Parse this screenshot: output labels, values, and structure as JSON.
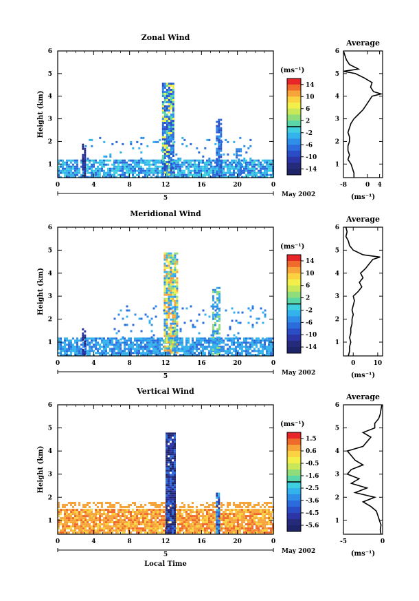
{
  "chart_data": [
    {
      "type": "heatmap",
      "title": "Zonal Wind",
      "ylabel": "Height (km)",
      "xticks": [
        "0",
        "4",
        "8",
        "12",
        "16",
        "20",
        "0"
      ],
      "yticks": [
        "1",
        "2",
        "3",
        "4",
        "5",
        "6"
      ],
      "xlim": [
        0,
        24
      ],
      "ylim": [
        0.4,
        6
      ],
      "date_marker": "5",
      "date_label": "May 2002",
      "colorbar": {
        "unit": "(ms⁻¹)",
        "ticks": [
          "14",
          "10",
          "6",
          "2",
          "-2",
          "-6",
          "-10",
          "-14"
        ],
        "range": [
          -16,
          16
        ],
        "colors": [
          "#e8262a",
          "#f06a2c",
          "#f7a43a",
          "#fbd241",
          "#f2ef4a",
          "#c8e85a",
          "#8fdc7a",
          "#5ad7a8",
          "#3fd0e0",
          "#33b2ec",
          "#2f8ee8",
          "#2c6bdc",
          "#2a4dc6",
          "#2b35a6",
          "#262a7a",
          "#1e2468"
        ]
      },
      "profile": {
        "title": "Average",
        "xlabel": "(ms⁻¹)",
        "xticks": [
          "-8",
          "0",
          "4"
        ],
        "yticks": [
          "1",
          "2",
          "3",
          "4",
          "5",
          "6"
        ],
        "xlim": [
          -8,
          5
        ],
        "heights": [
          0.4,
          0.6,
          0.8,
          1.0,
          1.2,
          1.4,
          1.6,
          1.8,
          2.0,
          2.2,
          2.4,
          2.6,
          2.8,
          3.0,
          3.2,
          3.4,
          3.6,
          3.8,
          4.0,
          4.1,
          4.2,
          4.4,
          4.6,
          4.8,
          5.0,
          5.1,
          5.2,
          5.4,
          5.6,
          5.8,
          6.0
        ],
        "values": [
          -4.5,
          -4.5,
          -5,
          -5.5,
          -6.5,
          -6,
          -6.5,
          -6.5,
          -6,
          -6,
          -6.5,
          -6,
          -5.5,
          -4.5,
          -3,
          -1.5,
          -0.5,
          0.5,
          1.5,
          4.5,
          2,
          1,
          1.5,
          -1,
          -4,
          -8,
          -3,
          -6,
          -7,
          -7.5,
          -8
        ]
      },
      "features": [
        {
          "type": "band",
          "x0": 0,
          "x1": 24,
          "hmin": 0.45,
          "hmax": 1.2,
          "values": [
            -1,
            -3,
            -6
          ],
          "density": 0.8
        },
        {
          "type": "column",
          "x0": 11.6,
          "x1": 12.9,
          "hmin": 0.5,
          "hmax": 4.6,
          "values": [
            -6,
            -8,
            2,
            8,
            -4
          ],
          "density": 0.85
        },
        {
          "type": "column",
          "x0": 17.6,
          "x1": 18.2,
          "hmin": 0.5,
          "hmax": 3.0,
          "values": [
            -5,
            -8,
            -6
          ],
          "density": 0.8
        },
        {
          "type": "column",
          "x0": 2.7,
          "x1": 3.1,
          "hmin": 0.5,
          "hmax": 1.9,
          "values": [
            -10,
            -12
          ],
          "density": 0.7
        },
        {
          "type": "column",
          "x0": 19.8,
          "x1": 20.4,
          "hmin": 0.5,
          "hmax": 1.7,
          "values": [
            -4,
            -6
          ],
          "density": 0.6
        },
        {
          "type": "scatter",
          "x0": 3,
          "x1": 22,
          "hmin": 1.1,
          "hmax": 2.2,
          "values": [
            -4,
            -6,
            -2
          ],
          "density": 0.08
        }
      ]
    },
    {
      "type": "heatmap",
      "title": "Meridional Wind",
      "ylabel": "Height (km)",
      "xticks": [
        "0",
        "4",
        "8",
        "12",
        "16",
        "20",
        "0"
      ],
      "yticks": [
        "1",
        "2",
        "3",
        "4",
        "5",
        "6"
      ],
      "xlim": [
        0,
        24
      ],
      "ylim": [
        0.4,
        6
      ],
      "date_marker": "5",
      "date_label": "May 2002",
      "colorbar": {
        "unit": "(ms⁻¹)",
        "ticks": [
          "14",
          "10",
          "6",
          "2",
          "-2",
          "-6",
          "-10",
          "-14"
        ],
        "range": [
          -16,
          16
        ],
        "colors": [
          "#e8262a",
          "#f06a2c",
          "#f7a43a",
          "#fbd241",
          "#f2ef4a",
          "#c8e85a",
          "#8fdc7a",
          "#5ad7a8",
          "#3fd0e0",
          "#33b2ec",
          "#2f8ee8",
          "#2c6bdc",
          "#2a4dc6",
          "#2b35a6",
          "#262a7a",
          "#1e2468"
        ]
      },
      "profile": {
        "title": "Average",
        "xlabel": "(ms⁻¹)",
        "xticks": [
          "0",
          "10"
        ],
        "yticks": [
          "1",
          "2",
          "3",
          "4",
          "5",
          "6"
        ],
        "xlim": [
          -4,
          12
        ],
        "heights": [
          0.4,
          0.6,
          0.8,
          1.0,
          1.2,
          1.4,
          1.6,
          1.8,
          2.0,
          2.2,
          2.4,
          2.6,
          2.8,
          3.0,
          3.2,
          3.4,
          3.6,
          3.8,
          4.0,
          4.2,
          4.4,
          4.6,
          4.7,
          4.8,
          5.0,
          5.2,
          5.4,
          5.6,
          5.8,
          6.0
        ],
        "values": [
          -2,
          -1.5,
          -1.5,
          -1,
          -1.5,
          -1,
          -1,
          -0.5,
          -0.5,
          0,
          -0.5,
          0,
          0.5,
          0,
          2,
          3.5,
          2.5,
          4,
          3,
          5,
          6.5,
          8,
          11,
          4,
          0,
          -1.5,
          -2,
          -3,
          -2.5,
          -3
        ]
      },
      "features": [
        {
          "type": "band",
          "x0": 0,
          "x1": 24,
          "hmin": 0.45,
          "hmax": 1.2,
          "values": [
            -2,
            -5,
            -7,
            -3
          ],
          "density": 0.8
        },
        {
          "type": "column",
          "x0": 11.8,
          "x1": 13.2,
          "hmin": 0.5,
          "hmax": 4.9,
          "values": [
            -5,
            -3,
            4,
            8,
            12
          ],
          "density": 0.85
        },
        {
          "type": "column",
          "x0": 17.2,
          "x1": 18.0,
          "hmin": 0.5,
          "hmax": 3.4,
          "values": [
            -4,
            -2,
            4
          ],
          "density": 0.6
        },
        {
          "type": "column",
          "x0": 2.7,
          "x1": 3.1,
          "hmin": 0.5,
          "hmax": 1.6,
          "values": [
            -10,
            -12
          ],
          "density": 0.6
        },
        {
          "type": "scatter",
          "x0": 6,
          "x1": 23,
          "hmin": 1.1,
          "hmax": 2.6,
          "values": [
            -4,
            -6,
            -2
          ],
          "density": 0.08
        }
      ]
    },
    {
      "type": "heatmap",
      "title": "Vertical Wind",
      "ylabel": "Height (km)",
      "xlabel": "Local Time",
      "xticks": [
        "0",
        "4",
        "8",
        "12",
        "16",
        "20",
        "0"
      ],
      "yticks": [
        "1",
        "2",
        "3",
        "4",
        "5",
        "6"
      ],
      "xlim": [
        0,
        24
      ],
      "ylim": [
        0.4,
        6
      ],
      "date_marker": "5",
      "date_label": "May 2002",
      "colorbar": {
        "unit": "(ms⁻¹)",
        "ticks": [
          "1.5",
          "0.6",
          "-0.5",
          "-1.6",
          "-2.5",
          "-3.6",
          "-4.5",
          "-5.6"
        ],
        "range": [
          -6.0,
          2.0
        ],
        "colors": [
          "#e8262a",
          "#f06a2c",
          "#f7a43a",
          "#fbd241",
          "#f2ef4a",
          "#c8e85a",
          "#8fdc7a",
          "#5ad7a8",
          "#3fd0e0",
          "#33b2ec",
          "#2f8ee8",
          "#2c6bdc",
          "#2a4dc6",
          "#2b35a6",
          "#262a7a",
          "#1e2468"
        ]
      },
      "profile": {
        "title": "Average",
        "xlabel": "(ms⁻¹)",
        "xticks": [
          "-5",
          "0"
        ],
        "yticks": [
          "1",
          "2",
          "3",
          "4",
          "5",
          "6"
        ],
        "xlim": [
          -5,
          0
        ],
        "heights": [
          0.4,
          0.6,
          0.8,
          1.0,
          1.2,
          1.4,
          1.6,
          1.8,
          2.0,
          2.2,
          2.4,
          2.6,
          2.8,
          3.0,
          3.2,
          3.4,
          3.6,
          3.8,
          4.0,
          4.2,
          4.4,
          4.6,
          4.8,
          5.0,
          5.2,
          5.4,
          5.6,
          5.8,
          6.0
        ],
        "values": [
          -0.2,
          -0.3,
          -0.2,
          -0.4,
          -0.6,
          -0.8,
          -1.5,
          -2.5,
          -1.0,
          -3.5,
          -2.0,
          -4.0,
          -3.0,
          -4.5,
          -4.0,
          -2.5,
          -3.5,
          -4.0,
          -4.5,
          -2.5,
          -2.0,
          -1.5,
          -2.5,
          -1.0,
          -1.0,
          -0.5,
          -0.3,
          -0.2,
          -0.1
        ]
      },
      "features": [
        {
          "type": "band",
          "x0": 0,
          "x1": 24,
          "hmin": 0.45,
          "hmax": 1.5,
          "values": [
            0.6,
            0.9,
            1.1,
            0.4
          ],
          "density": 0.88
        },
        {
          "type": "band",
          "x0": 0,
          "x1": 24,
          "hmin": 1.6,
          "hmax": 1.8,
          "values": [
            0.9,
            0.6
          ],
          "density": 0.5
        },
        {
          "type": "column",
          "x0": 12.0,
          "x1": 13.0,
          "hmin": 0.5,
          "hmax": 4.8,
          "values": [
            -5.6,
            -5.2,
            -4.6,
            -3.5
          ],
          "density": 0.95
        },
        {
          "type": "column",
          "x0": 17.6,
          "x1": 17.9,
          "hmin": 0.5,
          "hmax": 2.2,
          "values": [
            -4.5,
            -2.5,
            -3.5
          ],
          "density": 0.9
        }
      ]
    }
  ]
}
